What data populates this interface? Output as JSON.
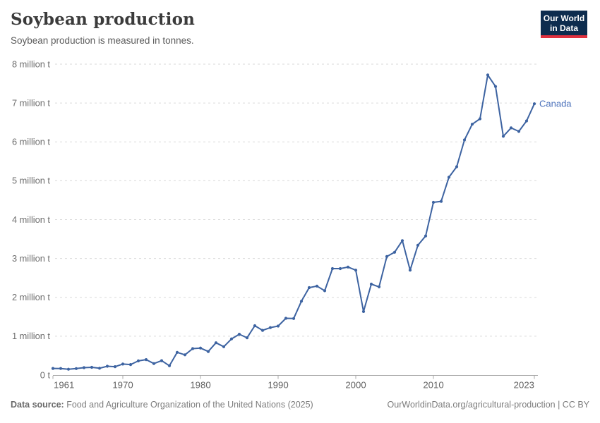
{
  "header": {
    "title": "Soybean production",
    "subtitle": "Soybean production is measured in tonnes."
  },
  "logo": {
    "line1": "Our World",
    "line2": "in Data",
    "bg_color": "#0d2c4e",
    "accent_color": "#e0313f"
  },
  "chart_data": {
    "type": "line",
    "title": "Soybean production",
    "unit": "tonnes",
    "grid": "horizontal-dashed",
    "legend_position": "end-of-line-label",
    "xlim": [
      1961,
      2023
    ],
    "ylim": [
      0,
      8000000
    ],
    "x_ticks": [
      1961,
      1970,
      1980,
      1990,
      2000,
      2010,
      2023
    ],
    "y_ticks": [
      {
        "value": 0,
        "label": "0 t"
      },
      {
        "value": 1000000,
        "label": "1 million t"
      },
      {
        "value": 2000000,
        "label": "2 million t"
      },
      {
        "value": 3000000,
        "label": "3 million t"
      },
      {
        "value": 4000000,
        "label": "4 million t"
      },
      {
        "value": 5000000,
        "label": "5 million t"
      },
      {
        "value": 6000000,
        "label": "6 million t"
      },
      {
        "value": 7000000,
        "label": "7 million t"
      },
      {
        "value": 8000000,
        "label": "8 million t"
      }
    ],
    "series": [
      {
        "name": "Canada",
        "color": "#3d63a1",
        "label_color": "#4a70ba",
        "x": [
          1961,
          1962,
          1963,
          1964,
          1965,
          1966,
          1967,
          1968,
          1969,
          1970,
          1971,
          1972,
          1973,
          1974,
          1975,
          1976,
          1977,
          1978,
          1979,
          1980,
          1981,
          1982,
          1983,
          1984,
          1985,
          1986,
          1987,
          1988,
          1989,
          1990,
          1991,
          1992,
          1993,
          1994,
          1995,
          1996,
          1997,
          1998,
          1999,
          2000,
          2001,
          2002,
          2003,
          2004,
          2005,
          2006,
          2007,
          2008,
          2009,
          2010,
          2011,
          2012,
          2013,
          2014,
          2015,
          2016,
          2017,
          2018,
          2019,
          2020,
          2021,
          2022,
          2023
        ],
        "values": [
          170000,
          168000,
          151000,
          167000,
          190000,
          199000,
          176000,
          227000,
          215000,
          283000,
          270000,
          365000,
          397000,
          295000,
          370000,
          240000,
          585000,
          520000,
          680000,
          695000,
          605000,
          830000,
          730000,
          930000,
          1050000,
          960000,
          1270000,
          1150000,
          1220000,
          1260000,
          1460000,
          1455000,
          1900000,
          2250000,
          2290000,
          2170000,
          2740000,
          2740000,
          2780000,
          2700000,
          1635000,
          2340000,
          2270000,
          3050000,
          3160000,
          3460000,
          2700000,
          3340000,
          3580000,
          4445000,
          4470000,
          5090000,
          5360000,
          6050000,
          6455000,
          6595000,
          7720000,
          7425000,
          6145000,
          6360000,
          6270000,
          6540000,
          6980000
        ]
      }
    ]
  },
  "footer": {
    "datasource_label": "Data source:",
    "datasource_text": " Food and Agriculture Organization of the United Nations (2025)",
    "right_text": "OurWorldinData.org/agricultural-production | CC BY"
  }
}
